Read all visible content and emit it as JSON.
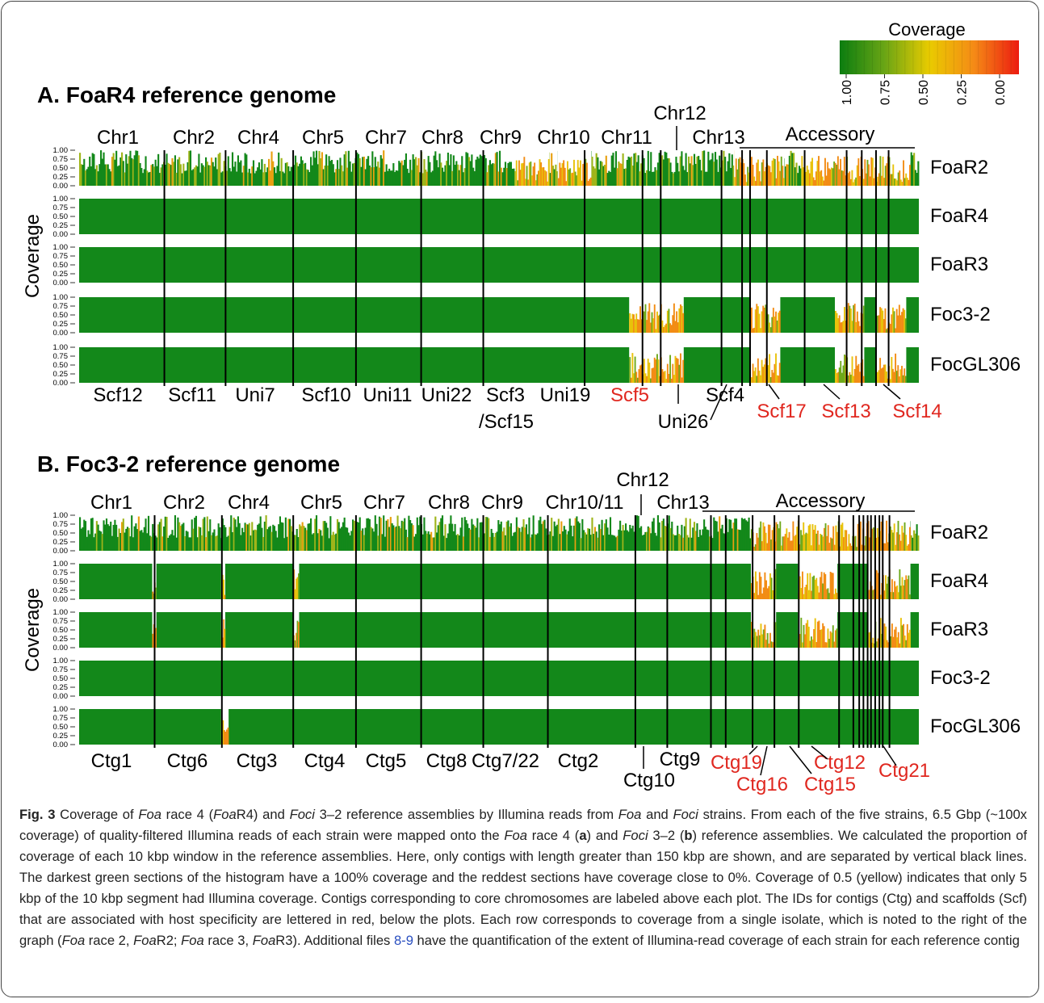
{
  "legend": {
    "title": "Coverage",
    "ticks": [
      "1.00",
      "0.75",
      "0.50",
      "0.25",
      "0.00"
    ],
    "colors": {
      "full": "#0b8c12",
      "mid": "#e6c800",
      "low": "#f5861a",
      "none": "#ea1d0f"
    }
  },
  "y_axis": {
    "label": "Coverage",
    "ticks": [
      "1.00",
      "0.75",
      "0.50",
      "0.25",
      "0.00"
    ]
  },
  "colors": {
    "bar": "#13881a",
    "red_label": "#e0271f",
    "divider": "#000000"
  },
  "chart_data": [
    {
      "type": "heatmap",
      "title": "A. FoaR4 reference genome",
      "top_labels": [
        "Chr1",
        "Chr2",
        "Chr4",
        "Chr5",
        "Chr7",
        "Chr8",
        "Chr9",
        "Chr10",
        "Chr11",
        "Chr12",
        "Chr13",
        "Accessory"
      ],
      "bottom_labels_black": [
        "Scf12",
        "Scf11",
        "Uni7",
        "Scf10",
        "Uni11",
        "Uni22",
        "Scf3",
        "/Scf15",
        "Uni19",
        "Uni26",
        "Scf4"
      ],
      "bottom_labels_red": [
        "Scf5",
        "Scf17",
        "Scf13",
        "Scf14"
      ],
      "rows": [
        "FoaR2",
        "FoaR4",
        "FoaR3",
        "Foc3-2",
        "FocGL306"
      ],
      "dividers_data_pos": [
        0.1667,
        0.2385,
        0.3105,
        0.391,
        0.4781,
        0.55,
        0.6305,
        0.7092,
        0.7788,
        0.8404,
        0.8797,
        0.9116,
        0.9398,
        0.9606,
        0.9728,
        0.98,
        0.986,
        0.992
      ],
      "low_coverage_region_row_min": {
        "FoaR2": 0.35,
        "Foc3-2": 0.1,
        "FocGL306": 0.1
      }
    },
    {
      "type": "heatmap",
      "title": "B. Foc3-2 reference genome",
      "top_labels": [
        "Chr1",
        "Chr2",
        "Chr4",
        "Chr5",
        "Chr7",
        "Chr8",
        "Chr9",
        "Chr10/11",
        "Chr12",
        "Chr13",
        "Accessory"
      ],
      "bottom_labels_black": [
        "Ctg1",
        "Ctg6",
        "Ctg3",
        "Ctg4",
        "Ctg5",
        "Ctg8",
        "Ctg7/22",
        "Ctg2",
        "Ctg10",
        "Ctg9"
      ],
      "bottom_labels_red": [
        "Ctg19",
        "Ctg16",
        "Ctg12",
        "Ctg15",
        "Ctg21"
      ],
      "rows": [
        "FoaR2",
        "FoaR4",
        "FoaR3",
        "Foc3-2",
        "FocGL306"
      ]
    }
  ],
  "caption": {
    "fig_label": "Fig. 3",
    "text_1": " Coverage of ",
    "foa": "Foa",
    "text_2": " race 4 (",
    "foa2": "Foa",
    "text_3": "R4) and ",
    "foci": "Foci",
    "text_4": " 3–2 reference assemblies by Illumina reads from ",
    "foa3": "Foa",
    "text_5": " and ",
    "foci2": "Foci",
    "text_6": " strains. From each of the five strains, 6.5 Gbp (~100x coverage) of quality-filtered Illumina reads of each strain were mapped onto the ",
    "foa4": "Foa",
    "text_7": " race 4 (",
    "a": "a",
    "text_8": ") and ",
    "foci3": "Foci",
    "text_9": " 3–2 (",
    "b": "b",
    "text_10": ") reference assemblies. We calculated the proportion of coverage of each 10 kbp window in the reference assemblies. Here, only contigs with length greater than 150 kbp are shown, and are separated by vertical black lines. The darkest green sections of the histogram have a 100% coverage and the reddest sections have coverage close to 0%. Coverage of 0.5 (yellow) indicates that only 5 kbp of the 10 kbp segment had Illumina coverage. Contigs corresponding to core chromosomes are labeled above each plot. The IDs for contigs (Ctg) and scaffolds (Scf) that are associated with host specificity are lettered in red, below the plots. Each row corresponds to coverage from a single isolate, which is noted to the right of the graph (",
    "foa5": "Foa",
    "text_11": " race 2, ",
    "foa6": "Foa",
    "text_12": "R2; ",
    "foa7": "Foa",
    "text_13": " race 3, ",
    "foa8": "Foa",
    "text_14": "R3). Additional files ",
    "link": "8-9",
    "text_15": " have the quantification of the extent of Illumina-read coverage of each strain for each reference contig"
  }
}
